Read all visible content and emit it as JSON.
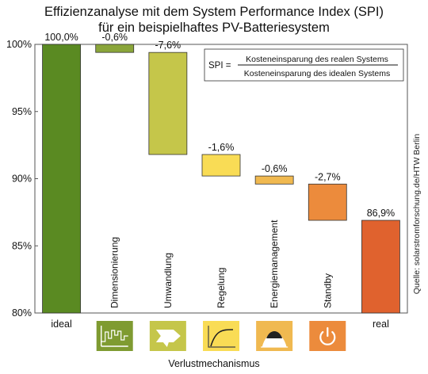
{
  "chart_data": {
    "type": "bar",
    "subtype": "waterfall",
    "title": "Effizienzanalyse mit dem System Performance Index (SPI)",
    "subtitle": "für ein beispielhaftes PV-Batteriesystem",
    "xlabel": "Verlustmechanismus",
    "ylabel": "",
    "ylim": [
      80,
      100
    ],
    "yticks": [
      "80%",
      "85%",
      "90%",
      "95%",
      "100%"
    ],
    "ytick_values": [
      80,
      85,
      90,
      95,
      100
    ],
    "grid": false,
    "categories": [
      "ideal",
      "Dimensionierung",
      "Umwandlung",
      "Regelung",
      "Energiemanagement",
      "Standby",
      "real"
    ],
    "bars": [
      {
        "category": "ideal",
        "start": 80,
        "end": 100,
        "label": "100,0%",
        "color": "#5a8a22",
        "icon": ""
      },
      {
        "category": "Dimensionierung",
        "start": 100,
        "end": 99.4,
        "label": "-0,6%",
        "color": "#8aa53a",
        "icon": "load-profile-icon"
      },
      {
        "category": "Umwandlung",
        "start": 99.4,
        "end": 91.8,
        "label": "-7,6%",
        "color": "#c5c64a",
        "icon": "inverter-arrow-icon"
      },
      {
        "category": "Regelung",
        "start": 91.8,
        "end": 90.2,
        "label": "-1,6%",
        "color": "#f9dc55",
        "icon": "control-curve-icon"
      },
      {
        "category": "Energiemanagement",
        "start": 90.2,
        "end": 89.6,
        "label": "-0,6%",
        "color": "#f0b950",
        "icon": "energy-hill-icon"
      },
      {
        "category": "Standby",
        "start": 89.6,
        "end": 86.9,
        "label": "-2,7%",
        "color": "#ec8b3c",
        "icon": "power-icon"
      },
      {
        "category": "real",
        "start": 80,
        "end": 86.9,
        "label": "86,9%",
        "color": "#e0622e",
        "icon": ""
      }
    ],
    "icon_colors": [
      "#7f9b31",
      "#c5c64a",
      "#f9dc55",
      "#f0b950",
      "#ec8b3c"
    ],
    "formula": {
      "lhs": "SPI =",
      "numerator": "Kosteneinsparung des realen Systems",
      "denominator": "Kosteneinsparung des idealen Systems"
    },
    "source": "Quelle: solarstromforschung.de/HTW Berlin"
  }
}
